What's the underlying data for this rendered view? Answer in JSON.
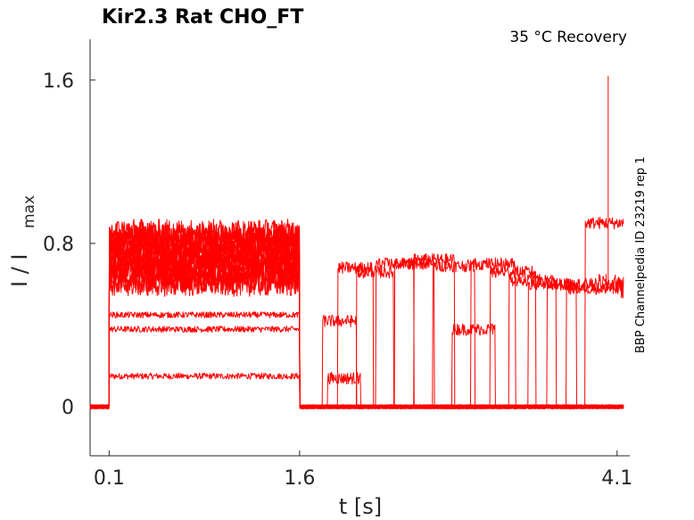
{
  "chart_data": {
    "type": "line",
    "title": "Kir2.3  Rat  CHO_FT",
    "condition": "35 °C  Recovery",
    "side_note": "BBP Channelpedia ID 23219 rep 1",
    "xlabel": "t [s]",
    "ylabel_main": "I / I",
    "ylabel_sub": "max",
    "xlim": [
      -0.05,
      4.2
    ],
    "ylim": [
      -0.24,
      1.8
    ],
    "x_ticks": [
      0.1,
      1.6,
      4.1
    ],
    "x_tick_labels": [
      "0.1",
      "1.6",
      "4.1"
    ],
    "y_ticks": [
      0,
      0.8,
      1.6
    ],
    "y_tick_labels": [
      "0",
      "0.8",
      "1.6"
    ],
    "grid": false,
    "line_color": "#ff0000",
    "series": [
      {
        "kind": "pulse",
        "level": 0.15,
        "pre": 0.0,
        "post": 0.0,
        "recovery_at": null,
        "recovery_level": null
      },
      {
        "kind": "pulse",
        "level": 0.38,
        "pre": 0.0,
        "post": 0.0,
        "recovery_at": 1.82,
        "recovery_level": 0.14
      },
      {
        "kind": "pulse",
        "level": 0.45,
        "pre": 0.0,
        "post": 0.0,
        "recovery_at": 1.78,
        "recovery_level": 0.42
      },
      {
        "kind": "pulse",
        "level": 0.6,
        "pre": 0.0,
        "post": 0.0,
        "recovery_at": 1.9,
        "recovery_level": 0.68
      },
      {
        "kind": "pulse",
        "level": 0.62,
        "pre": 0.0,
        "post": 0.0,
        "recovery_at": 2.05,
        "recovery_level": 0.66
      },
      {
        "kind": "pulse",
        "level": 0.65,
        "pre": 0.0,
        "post": 0.0,
        "recovery_at": 2.2,
        "recovery_level": 0.7
      },
      {
        "kind": "pulse",
        "level": 0.66,
        "pre": 0.0,
        "post": 0.0,
        "recovery_at": 2.35,
        "recovery_level": 0.7
      },
      {
        "kind": "pulse",
        "level": 0.68,
        "pre": 0.0,
        "post": 0.0,
        "recovery_at": 2.5,
        "recovery_level": 0.72
      },
      {
        "kind": "pulse",
        "level": 0.7,
        "pre": 0.0,
        "post": 0.0,
        "recovery_at": 2.65,
        "recovery_level": 0.69
      },
      {
        "kind": "pulse",
        "level": 0.72,
        "pre": 0.0,
        "post": 0.0,
        "recovery_at": 2.8,
        "recovery_level": 0.38
      },
      {
        "kind": "pulse",
        "level": 0.74,
        "pre": 0.0,
        "post": 0.0,
        "recovery_at": 2.95,
        "recovery_level": 0.7
      },
      {
        "kind": "pulse",
        "level": 0.76,
        "pre": 0.0,
        "post": 0.0,
        "recovery_at": 3.1,
        "recovery_level": 0.66
      },
      {
        "kind": "pulse",
        "level": 0.78,
        "pre": 0.0,
        "post": 0.0,
        "recovery_at": 3.25,
        "recovery_level": 0.62
      },
      {
        "kind": "pulse",
        "level": 0.8,
        "pre": 0.0,
        "post": 0.0,
        "recovery_at": 3.4,
        "recovery_level": 0.6
      },
      {
        "kind": "pulse",
        "level": 0.82,
        "pre": 0.0,
        "post": 0.0,
        "recovery_at": 3.55,
        "recovery_level": 0.6
      },
      {
        "kind": "pulse",
        "level": 0.84,
        "pre": 0.0,
        "post": 0.0,
        "recovery_at": 3.7,
        "recovery_level": 0.58
      },
      {
        "kind": "pulse",
        "level": 0.86,
        "pre": 0.0,
        "post": 0.0,
        "recovery_at": 3.85,
        "recovery_level": 0.9
      }
    ],
    "peak_spike": {
      "x": 4.03,
      "y": 1.62
    }
  }
}
